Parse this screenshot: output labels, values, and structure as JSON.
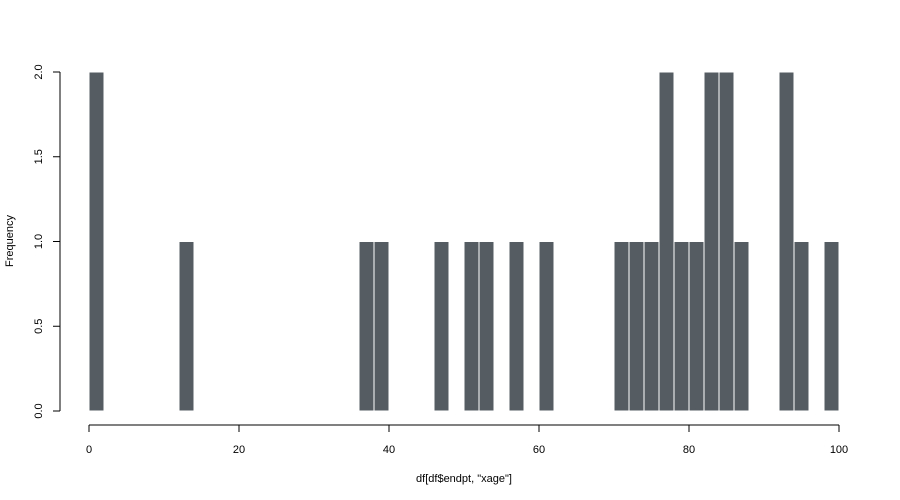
{
  "chart_data": {
    "type": "bar",
    "histogram": true,
    "title": "",
    "xlabel": "df[df$endpt, \"xage\"]",
    "ylabel": "Frequency",
    "bin_width": 2,
    "xlim": [
      0,
      100
    ],
    "ylim": [
      0,
      2
    ],
    "x_ticks": [
      0,
      20,
      40,
      60,
      80,
      100
    ],
    "y_ticks": [
      0.0,
      0.5,
      1.0,
      1.5,
      2.0
    ],
    "x_tick_labels": [
      "0",
      "20",
      "40",
      "60",
      "80",
      "100"
    ],
    "y_tick_labels": [
      "0.0",
      "0.5",
      "1.0",
      "1.5",
      "2.0"
    ],
    "grid": false,
    "bar_color": "#555d63",
    "bins": [
      {
        "x0": 0,
        "x1": 2,
        "count": 2
      },
      {
        "x0": 12,
        "x1": 14,
        "count": 1
      },
      {
        "x0": 36,
        "x1": 38,
        "count": 1
      },
      {
        "x0": 38,
        "x1": 40,
        "count": 1
      },
      {
        "x0": 46,
        "x1": 48,
        "count": 1
      },
      {
        "x0": 50,
        "x1": 52,
        "count": 1
      },
      {
        "x0": 52,
        "x1": 54,
        "count": 1
      },
      {
        "x0": 56,
        "x1": 58,
        "count": 1
      },
      {
        "x0": 60,
        "x1": 62,
        "count": 1
      },
      {
        "x0": 70,
        "x1": 72,
        "count": 1
      },
      {
        "x0": 72,
        "x1": 74,
        "count": 1
      },
      {
        "x0": 74,
        "x1": 76,
        "count": 1
      },
      {
        "x0": 76,
        "x1": 78,
        "count": 2
      },
      {
        "x0": 78,
        "x1": 80,
        "count": 1
      },
      {
        "x0": 80,
        "x1": 82,
        "count": 1
      },
      {
        "x0": 82,
        "x1": 84,
        "count": 2
      },
      {
        "x0": 84,
        "x1": 86,
        "count": 2
      },
      {
        "x0": 86,
        "x1": 88,
        "count": 1
      },
      {
        "x0": 92,
        "x1": 94,
        "count": 2
      },
      {
        "x0": 94,
        "x1": 96,
        "count": 1
      },
      {
        "x0": 98,
        "x1": 100,
        "count": 1
      }
    ]
  }
}
